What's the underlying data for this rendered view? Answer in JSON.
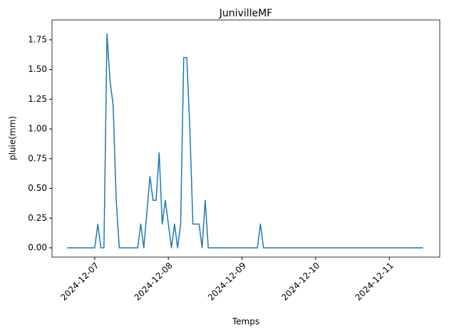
{
  "chart_data": {
    "type": "line",
    "title": "JunivilleMF",
    "x_label": "Temps",
    "y_label": "pluie(mm)",
    "color": "#1f77b4",
    "x": [
      "2024-12-06T15:00",
      "2024-12-07T00:00",
      "2024-12-07T01:00",
      "2024-12-07T02:00",
      "2024-12-07T03:00",
      "2024-12-07T04:00",
      "2024-12-07T05:00",
      "2024-12-07T06:00",
      "2024-12-07T07:00",
      "2024-12-07T08:00",
      "2024-12-07T14:00",
      "2024-12-07T15:00",
      "2024-12-07T16:00",
      "2024-12-07T18:00",
      "2024-12-07T19:00",
      "2024-12-07T20:00",
      "2024-12-07T21:00",
      "2024-12-07T22:00",
      "2024-12-07T23:00",
      "2024-12-08T01:00",
      "2024-12-08T02:00",
      "2024-12-08T03:00",
      "2024-12-08T04:00",
      "2024-12-08T05:00",
      "2024-12-08T06:00",
      "2024-12-08T07:00",
      "2024-12-08T08:00",
      "2024-12-08T09:00",
      "2024-12-08T10:00",
      "2024-12-08T11:00",
      "2024-12-08T12:00",
      "2024-12-08T13:00",
      "2024-12-09T05:00",
      "2024-12-09T06:00",
      "2024-12-09T07:00",
      "2024-12-11T11:00"
    ],
    "values": [
      0,
      0,
      0.2,
      0,
      0,
      1.8,
      1.4,
      1.2,
      0.4,
      0,
      0,
      0.2,
      0,
      0.6,
      0.4,
      0.4,
      0.8,
      0.2,
      0.4,
      0,
      0.2,
      0,
      0.2,
      1.6,
      1.6,
      1.0,
      0.2,
      0.2,
      0.2,
      0,
      0.4,
      0,
      0,
      0.2,
      0,
      0
    ],
    "xlim": [
      "2024-12-06T10:05",
      "2024-12-11T16:26"
    ],
    "xticks": [
      {
        "value": "2024-12-07T00:00",
        "label": "2024-12-07"
      },
      {
        "value": "2024-12-08T00:00",
        "label": "2024-12-08"
      },
      {
        "value": "2024-12-09T00:00",
        "label": "2024-12-09"
      },
      {
        "value": "2024-12-10T00:00",
        "label": "2024-12-10"
      },
      {
        "value": "2024-12-11T00:00",
        "label": "2024-12-11"
      }
    ],
    "ylim": [
      -0.078,
      1.917
    ],
    "yticks": [
      {
        "value": 0,
        "label": "0.00"
      },
      {
        "value": 0.25,
        "label": "0.25"
      },
      {
        "value": 0.5,
        "label": "0.50"
      },
      {
        "value": 0.75,
        "label": "0.75"
      },
      {
        "value": 1,
        "label": "1.00"
      },
      {
        "value": 1.25,
        "label": "1.25"
      },
      {
        "value": 1.5,
        "label": "1.50"
      },
      {
        "value": 1.75,
        "label": "1.75"
      }
    ]
  }
}
